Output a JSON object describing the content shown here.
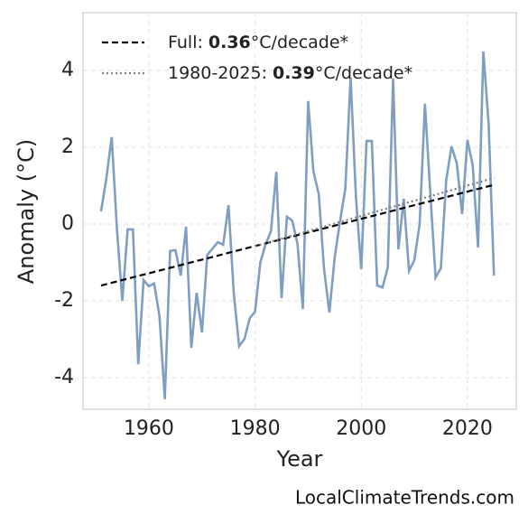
{
  "chart_data": {
    "type": "line",
    "x_label": "Year",
    "y_label": "Anomaly (°C)",
    "footer": "LocalClimateTrends.com",
    "xlim": [
      1947.6,
      2029.2
    ],
    "xticks": [
      1960,
      1980,
      2000,
      2020
    ],
    "ylim": [
      -4.82,
      5.5
    ],
    "yticks": [
      -4,
      -2,
      0,
      2,
      4
    ],
    "grid": true,
    "legend": "upper left",
    "series": [
      {
        "color": "#7f9ec2",
        "style": "solid",
        "x": [
          1951,
          1952,
          1953,
          1954,
          1955,
          1956,
          1957,
          1958,
          1959,
          1960,
          1961,
          1962,
          1963,
          1964,
          1965,
          1966,
          1967,
          1968,
          1969,
          1970,
          1971,
          1972,
          1973,
          1974,
          1975,
          1976,
          1977,
          1978,
          1979,
          1980,
          1981,
          1982,
          1983,
          1984,
          1985,
          1986,
          1987,
          1988,
          1989,
          1990,
          1991,
          1992,
          1993,
          1994,
          1995,
          1996,
          1997,
          1998,
          1999,
          2000,
          2001,
          2002,
          2003,
          2004,
          2005,
          2006,
          2007,
          2008,
          2009,
          2010,
          2011,
          2012,
          2013,
          2014,
          2015,
          2016,
          2017,
          2018,
          2019,
          2020,
          2021,
          2022,
          2023,
          2024,
          2025
        ],
        "values": [
          0.33,
          1.2,
          2.26,
          -0.16,
          -2.0,
          -0.14,
          -0.14,
          -3.65,
          -1.46,
          -1.62,
          -1.55,
          -2.4,
          -4.56,
          -0.7,
          -0.68,
          -1.34,
          -0.07,
          -3.22,
          -1.79,
          -2.82,
          -0.8,
          -0.64,
          -0.47,
          -0.54,
          0.49,
          -1.81,
          -3.18,
          -2.99,
          -2.45,
          -2.28,
          -0.99,
          -0.52,
          -0.19,
          1.36,
          -1.93,
          0.19,
          0.09,
          -0.52,
          -2.21,
          3.2,
          1.36,
          0.78,
          -1.18,
          -2.3,
          -0.87,
          0.07,
          0.92,
          3.81,
          0.71,
          -1.18,
          2.16,
          2.16,
          -1.6,
          -1.65,
          -1.13,
          3.79,
          -0.66,
          0.66,
          -1.22,
          -0.94,
          0.0,
          3.13,
          0.82,
          -1.39,
          -1.15,
          1.13,
          2.02,
          1.58,
          0.26,
          2.19,
          1.53,
          -0.61,
          4.49,
          2.59,
          -1.34
        ]
      },
      {
        "name": [
          "Full:",
          "0.36",
          "°C/decade*"
        ],
        "color": "#000000",
        "style": "dashed",
        "x": [
          1951,
          2025
        ],
        "values": [
          -1.6,
          1.02
        ]
      },
      {
        "name": [
          "1980-2025:",
          "0.39",
          "°C/decade*"
        ],
        "color": "#808080",
        "style": "dotted",
        "x": [
          1980,
          2025
        ],
        "values": [
          -0.58,
          1.2
        ]
      }
    ]
  }
}
